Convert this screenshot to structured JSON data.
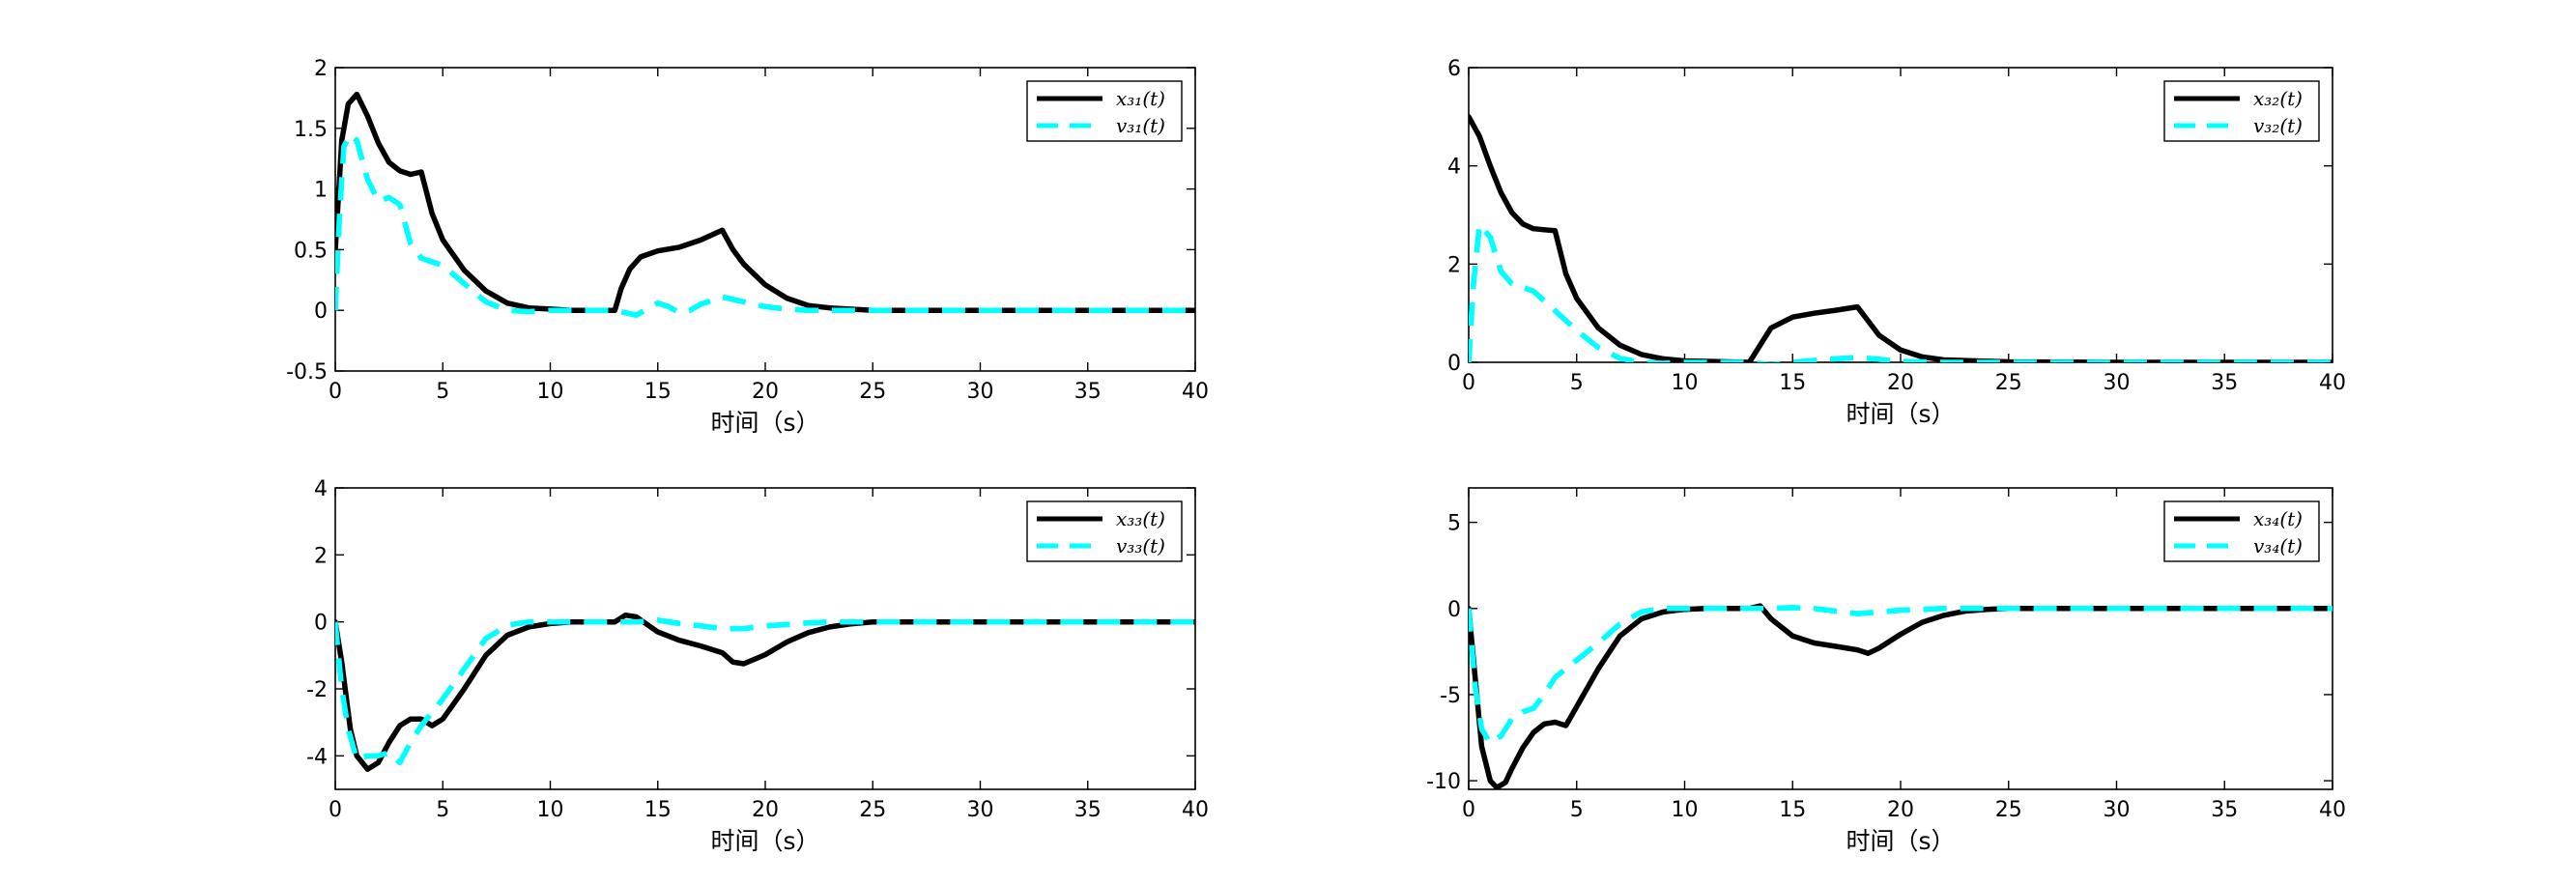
{
  "figure": {
    "background": "#ffffff"
  },
  "chart_data": [
    {
      "type": "line",
      "xlabel": "时间（s）",
      "xlim": [
        0,
        40
      ],
      "ylim": [
        -0.5,
        2
      ],
      "xticks": [
        0,
        5,
        10,
        15,
        20,
        25,
        30,
        35,
        40
      ],
      "yticks": [
        -0.5,
        0,
        0.5,
        1,
        1.5,
        2
      ],
      "ytick_labels": [
        "-0.5",
        "0",
        "0.5",
        "1",
        "1.5",
        "2"
      ],
      "grid": false,
      "legend_position": "top-right",
      "series": [
        {
          "name": "x31(t)",
          "color": "#000000",
          "style": "solid",
          "x": [
            0,
            0.3,
            0.6,
            1,
            1.5,
            2,
            2.5,
            3,
            3.5,
            4,
            4.5,
            5,
            6,
            7,
            8,
            9,
            10,
            11,
            12,
            13,
            13.3,
            13.7,
            14.2,
            15,
            16,
            17,
            18,
            18.5,
            19,
            20,
            21,
            22,
            23,
            25,
            30,
            35,
            40
          ],
          "y": [
            0.5,
            1.4,
            1.7,
            1.78,
            1.6,
            1.38,
            1.22,
            1.15,
            1.12,
            1.14,
            0.8,
            0.58,
            0.33,
            0.16,
            0.06,
            0.02,
            0.01,
            0.0,
            0.0,
            0.0,
            0.18,
            0.34,
            0.44,
            0.49,
            0.52,
            0.58,
            0.66,
            0.5,
            0.38,
            0.21,
            0.1,
            0.04,
            0.02,
            0.0,
            0.0,
            0.0,
            0.0
          ]
        },
        {
          "name": "v31(t)",
          "color": "#00ffff",
          "style": "dashed",
          "x": [
            0,
            0.2,
            0.4,
            0.7,
            1,
            1.5,
            2,
            2.5,
            3,
            3.5,
            4,
            4.5,
            5,
            6,
            7,
            8,
            9,
            10,
            12,
            13,
            14,
            14.5,
            15,
            15.5,
            16,
            16.5,
            17,
            18,
            19,
            20,
            21,
            22,
            25,
            30,
            35,
            40
          ],
          "y": [
            0,
            0.8,
            1.35,
            1.45,
            1.4,
            1.08,
            0.9,
            0.93,
            0.87,
            0.55,
            0.43,
            0.4,
            0.37,
            0.22,
            0.07,
            0.0,
            -0.01,
            0.0,
            0.0,
            0.0,
            -0.04,
            0.01,
            0.06,
            0.03,
            -0.02,
            0.0,
            0.05,
            0.11,
            0.07,
            0.03,
            0.01,
            0.0,
            0.0,
            0.0,
            0.0,
            0.0
          ]
        }
      ]
    },
    {
      "type": "line",
      "xlabel": "时间（s）",
      "xlim": [
        0,
        40
      ],
      "ylim": [
        0,
        6
      ],
      "xticks": [
        0,
        5,
        10,
        15,
        20,
        25,
        30,
        35,
        40
      ],
      "yticks": [
        0,
        2,
        4,
        6
      ],
      "ytick_labels": [
        "0",
        "2",
        "4",
        "6"
      ],
      "grid": false,
      "legend_position": "top-right",
      "series": [
        {
          "name": "x32(t)",
          "color": "#000000",
          "style": "solid",
          "x": [
            0,
            0.5,
            1,
            1.5,
            2,
            2.5,
            3,
            3.5,
            4,
            4.5,
            5,
            6,
            7,
            8,
            9,
            10,
            11,
            12,
            13,
            13.5,
            14,
            15,
            16,
            17,
            18,
            19,
            20,
            21,
            22,
            25,
            30,
            35,
            40
          ],
          "y": [
            5.0,
            4.6,
            4.0,
            3.45,
            3.05,
            2.82,
            2.72,
            2.7,
            2.68,
            1.8,
            1.3,
            0.7,
            0.35,
            0.16,
            0.07,
            0.03,
            0.02,
            0.01,
            0.0,
            0.35,
            0.7,
            0.92,
            1.0,
            1.06,
            1.13,
            0.55,
            0.25,
            0.11,
            0.05,
            0.01,
            0.0,
            0.0,
            0.0
          ]
        },
        {
          "name": "v32(t)",
          "color": "#00ffff",
          "style": "dashed",
          "x": [
            0,
            0.2,
            0.5,
            1,
            1.5,
            2,
            3,
            4,
            5,
            6,
            7,
            8,
            9,
            10,
            12,
            13,
            14,
            15,
            16,
            17,
            18,
            19,
            20,
            22,
            25,
            30,
            35,
            40
          ],
          "y": [
            0,
            1.5,
            2.8,
            2.55,
            1.85,
            1.6,
            1.45,
            1.05,
            0.65,
            0.3,
            0.08,
            0.0,
            -0.02,
            0.0,
            0.0,
            0.0,
            -0.05,
            0.0,
            0.04,
            0.07,
            0.1,
            0.06,
            0.02,
            0.0,
            0.0,
            0.0,
            0.0,
            0.0
          ]
        }
      ]
    },
    {
      "type": "line",
      "xlabel": "时间（s）",
      "xlim": [
        0,
        40
      ],
      "ylim": [
        -5,
        4
      ],
      "xticks": [
        0,
        5,
        10,
        15,
        20,
        25,
        30,
        35,
        40
      ],
      "yticks": [
        -4,
        -2,
        0,
        2,
        4
      ],
      "ytick_labels": [
        "-4",
        "-2",
        "0",
        "2",
        "4"
      ],
      "grid": false,
      "legend_position": "top-right",
      "series": [
        {
          "name": "x33(t)",
          "color": "#000000",
          "style": "solid",
          "x": [
            0,
            0.3,
            0.7,
            1,
            1.5,
            2,
            2.5,
            3,
            3.5,
            4,
            4.5,
            5,
            6,
            7,
            8,
            9,
            10,
            11,
            12,
            13,
            13.5,
            14,
            15,
            16,
            17,
            18,
            18.5,
            19,
            20,
            21,
            22,
            23,
            24,
            25,
            30,
            35,
            40
          ],
          "y": [
            0,
            -1.2,
            -3.2,
            -4.0,
            -4.4,
            -4.2,
            -3.6,
            -3.1,
            -2.9,
            -2.9,
            -3.1,
            -2.9,
            -2.0,
            -1.0,
            -0.4,
            -0.15,
            -0.05,
            0.0,
            0.0,
            0.0,
            0.2,
            0.15,
            -0.3,
            -0.55,
            -0.72,
            -0.92,
            -1.2,
            -1.25,
            -0.98,
            -0.6,
            -0.32,
            -0.15,
            -0.06,
            0.0,
            0.0,
            0.0,
            0.0
          ]
        },
        {
          "name": "v33(t)",
          "color": "#00ffff",
          "style": "dashed",
          "x": [
            0,
            0.3,
            0.6,
            1,
            1.5,
            2,
            2.5,
            3,
            3.5,
            4,
            4.5,
            5,
            6,
            7,
            8,
            9,
            10,
            12,
            13,
            14,
            15,
            16,
            17,
            18,
            19,
            20,
            21,
            22,
            23,
            25,
            30,
            35,
            40
          ],
          "y": [
            0,
            -2.0,
            -3.2,
            -4.1,
            -4.0,
            -4.0,
            -3.9,
            -4.2,
            -3.6,
            -3.1,
            -2.7,
            -2.3,
            -1.4,
            -0.5,
            -0.1,
            0.0,
            0.0,
            0.0,
            0.0,
            0.0,
            0.05,
            -0.05,
            -0.12,
            -0.2,
            -0.2,
            -0.12,
            -0.08,
            -0.03,
            0.0,
            0.0,
            0.0,
            0.0,
            0.0
          ]
        }
      ]
    },
    {
      "type": "line",
      "xlabel": "时间（s）",
      "xlim": [
        0,
        40
      ],
      "ylim": [
        -10.5,
        7
      ],
      "xticks": [
        0,
        5,
        10,
        15,
        20,
        25,
        30,
        35,
        40
      ],
      "yticks": [
        -10,
        -5,
        0,
        5
      ],
      "ytick_labels": [
        "-10",
        "-5",
        "0",
        "5"
      ],
      "grid": false,
      "legend_position": "top-right",
      "series": [
        {
          "name": "x34(t)",
          "color": "#000000",
          "style": "solid",
          "x": [
            0,
            0.3,
            0.6,
            1,
            1.3,
            1.7,
            2,
            2.5,
            3,
            3.5,
            4,
            4.5,
            5,
            6,
            7,
            8,
            9,
            10,
            11,
            12,
            13,
            13.5,
            14,
            15,
            16,
            17,
            18,
            18.5,
            19,
            20,
            21,
            22,
            23,
            24,
            25,
            30,
            35,
            40
          ],
          "y": [
            0,
            -4.0,
            -8.0,
            -10.0,
            -10.4,
            -10.1,
            -9.3,
            -8.1,
            -7.2,
            -6.7,
            -6.6,
            -6.8,
            -5.7,
            -3.5,
            -1.6,
            -0.6,
            -0.2,
            -0.05,
            0.0,
            0.0,
            0.0,
            0.15,
            -0.6,
            -1.6,
            -2.0,
            -2.2,
            -2.4,
            -2.6,
            -2.3,
            -1.5,
            -0.8,
            -0.4,
            -0.15,
            -0.05,
            0.0,
            0.0,
            0.0,
            0.0
          ]
        },
        {
          "name": "v34(t)",
          "color": "#00ffff",
          "style": "dashed",
          "x": [
            0,
            0.3,
            0.6,
            1,
            1.5,
            2,
            2.5,
            3,
            3.5,
            4,
            4.5,
            5,
            6,
            7,
            8,
            9,
            10,
            12,
            13,
            14,
            15,
            16,
            17,
            18,
            19,
            20,
            21,
            22,
            25,
            30,
            35,
            40
          ],
          "y": [
            0,
            -4.5,
            -7.0,
            -7.8,
            -7.4,
            -6.4,
            -6.0,
            -5.8,
            -5.0,
            -4.0,
            -3.5,
            -3.0,
            -2.0,
            -0.9,
            -0.2,
            0.0,
            0.0,
            0.0,
            0.0,
            0.0,
            0.05,
            0.0,
            -0.15,
            -0.3,
            -0.2,
            -0.1,
            -0.05,
            0.0,
            0.0,
            0.0,
            0.0,
            0.0
          ]
        }
      ]
    }
  ]
}
